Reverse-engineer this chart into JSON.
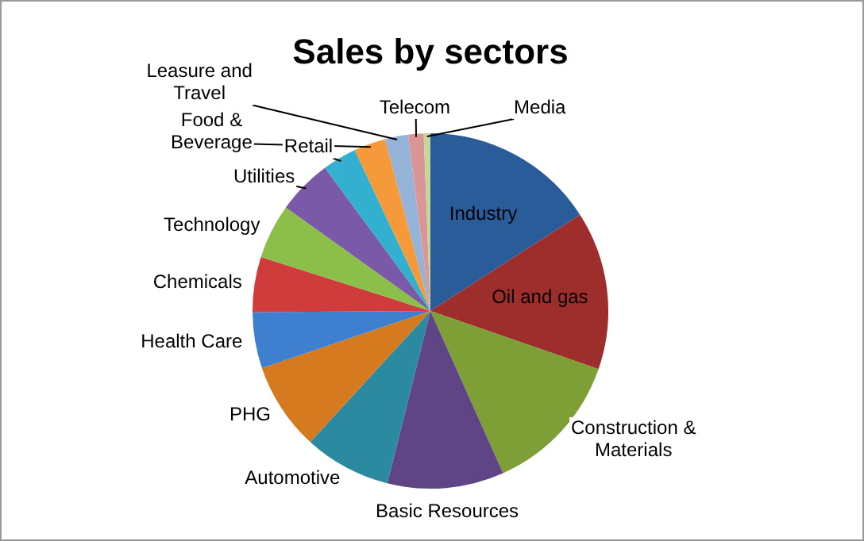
{
  "chart_data": {
    "type": "pie",
    "title": "Sales by sectors",
    "categories": [
      "Industry",
      "Oil and gas",
      "Construction & Materials",
      "Basic Resources",
      "Automotive",
      "PHG",
      "Health Care",
      "Chemicals",
      "Technology",
      "Utilities",
      "Retail",
      "Food & Beverage",
      "Leasure and Travel",
      "Telecom",
      "Media"
    ],
    "values": [
      15.9,
      14.4,
      13,
      10.6,
      7.9,
      8,
      5.1,
      5,
      5,
      5,
      3.1,
      2.9,
      2.1,
      1.4,
      0.6
    ],
    "colors": [
      "#2a5c9a",
      "#9e2e2b",
      "#7e9e36",
      "#5f4585",
      "#2b8aa0",
      "#d67a20",
      "#3f7fd0",
      "#d03c3c",
      "#8cbf4a",
      "#7a5aa8",
      "#33b0cf",
      "#f59a3a",
      "#95b3d7",
      "#d99694",
      "#c3d69b"
    ],
    "legend": false
  }
}
